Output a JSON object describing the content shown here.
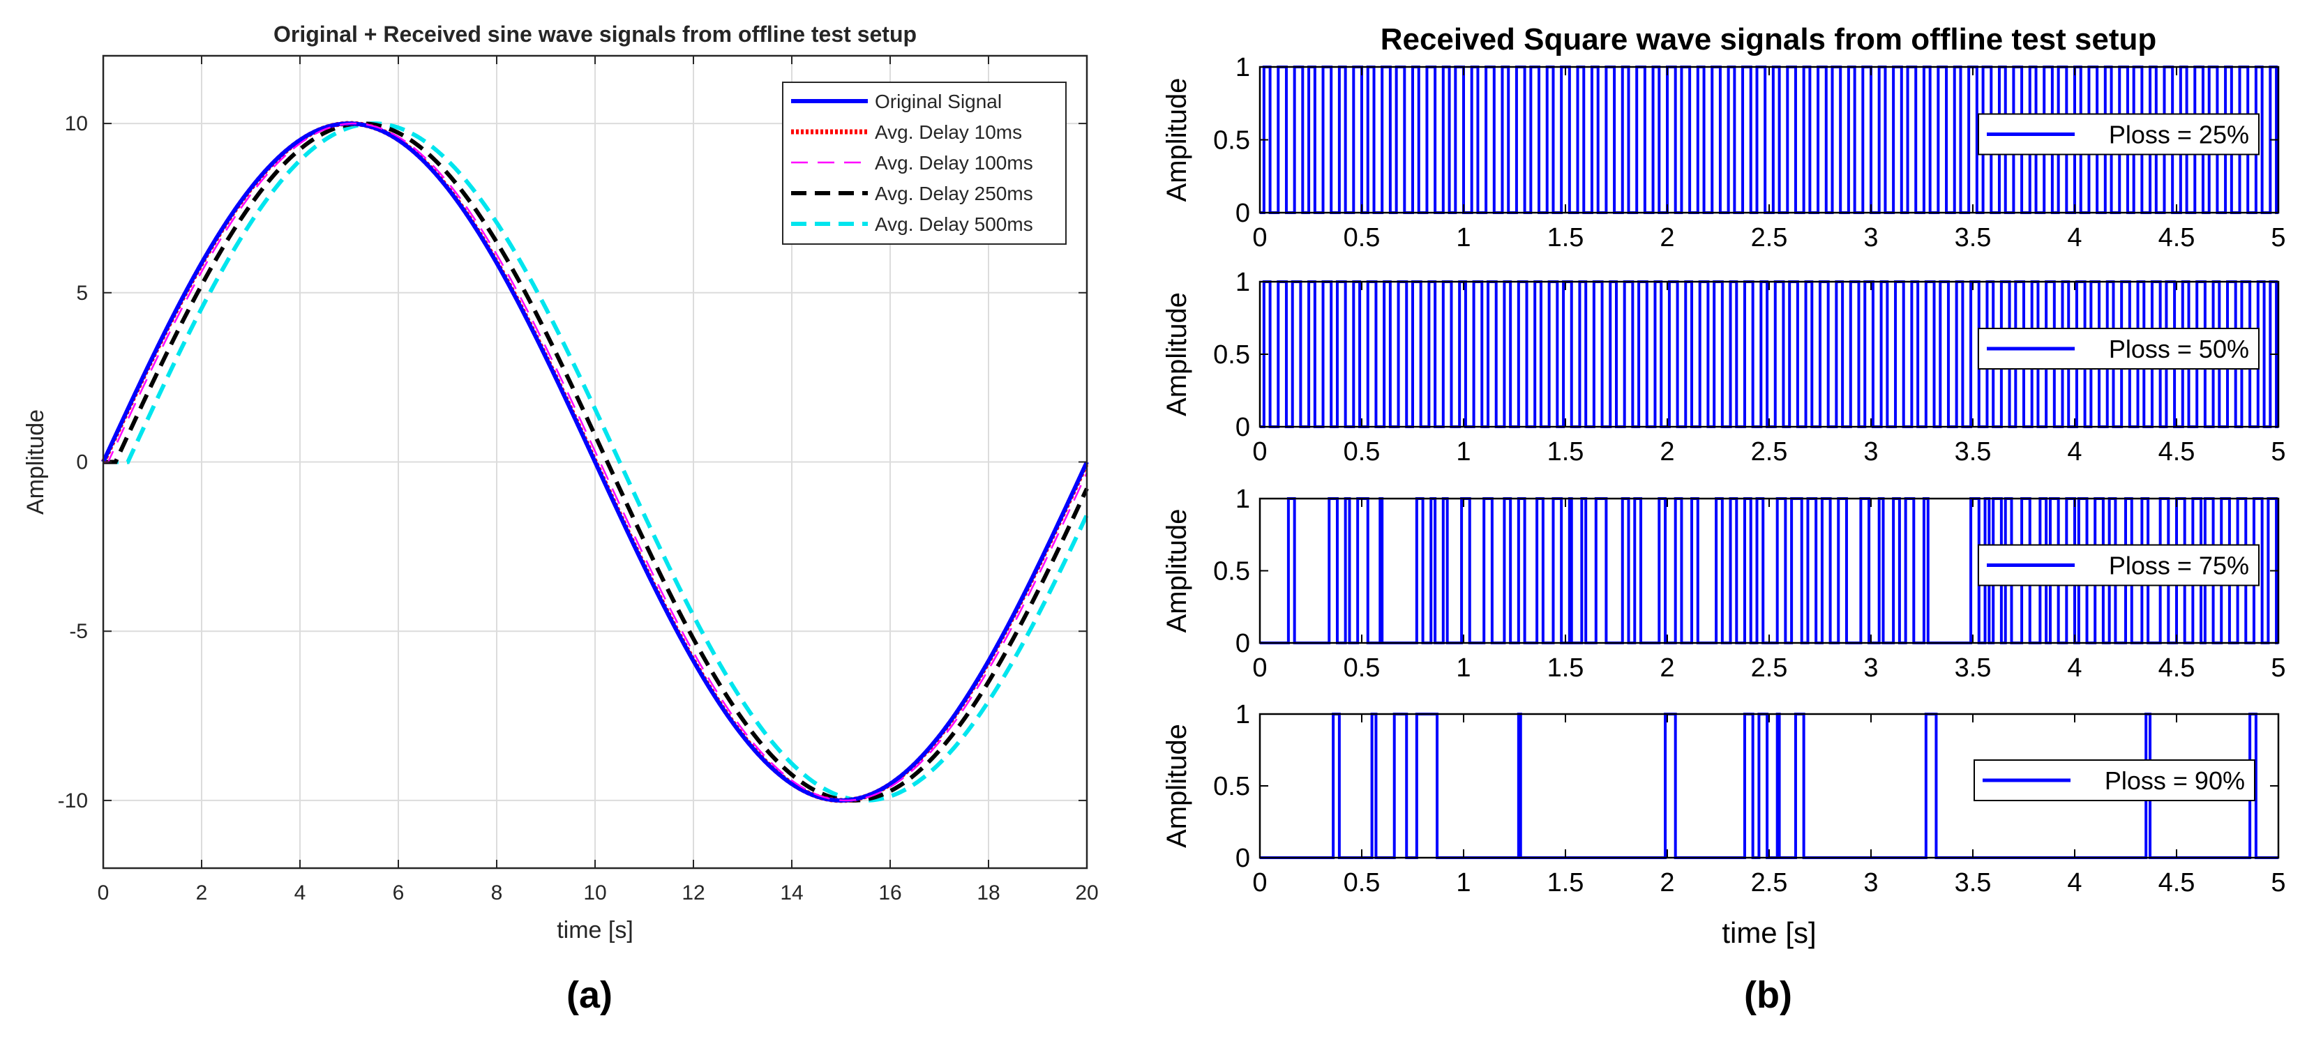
{
  "chart_data": [
    {
      "type": "line",
      "panel_label": "(a)",
      "title": "Original + Received sine wave signals from offline test setup",
      "xlabel": "time [s]",
      "ylabel": "Amplitude",
      "xlim": [
        0,
        20
      ],
      "ylim": [
        -12,
        12
      ],
      "xticks": [
        0,
        2,
        4,
        6,
        8,
        10,
        12,
        14,
        16,
        18,
        20
      ],
      "yticks": [
        -10,
        -5,
        0,
        5,
        10
      ],
      "grid": true,
      "legend_position": "top-right",
      "signal": "10*sin(2*pi*t/20), sampled 0 to 20 s",
      "series": [
        {
          "name": "Original Signal",
          "delay_s": 0,
          "amplitude": 10,
          "period_s": 20,
          "color": "#0000ff",
          "style": "solid"
        },
        {
          "name": "Avg. Delay 10ms",
          "delay_s": 0.01,
          "amplitude": 10,
          "period_s": 20,
          "color": "#ff0000",
          "style": "dotted"
        },
        {
          "name": "Avg. Delay 100ms",
          "delay_s": 0.1,
          "amplitude": 10,
          "period_s": 20,
          "color": "#ff00ff",
          "style": "dashed-thin"
        },
        {
          "name": "Avg. Delay 250ms",
          "delay_s": 0.25,
          "amplitude": 10,
          "period_s": 20,
          "color": "#000000",
          "style": "dashed"
        },
        {
          "name": "Avg. Delay 500ms",
          "delay_s": 0.5,
          "amplitude": 10,
          "period_s": 20,
          "color": "#00e5ee",
          "style": "dashed"
        }
      ]
    },
    {
      "type": "line",
      "panel_label": "(b)",
      "title": "Received Square wave signals from offline test setup",
      "xlabel": "time [s]",
      "ylabel": "Amplitude",
      "xlim": [
        0,
        5
      ],
      "ylim": [
        0,
        1
      ],
      "xticks": [
        0,
        0.5,
        1,
        1.5,
        2,
        2.5,
        3,
        3.5,
        4,
        4.5,
        5
      ],
      "xtick_labels": [
        "0",
        "0.5",
        "1",
        "1.5",
        "2",
        "2.5",
        "3",
        "3.5",
        "4",
        "4.5",
        "5"
      ],
      "yticks": [
        0,
        0.5,
        1
      ],
      "ytick_labels": [
        "0",
        "0.5",
        "1"
      ],
      "legend_position": "right",
      "color": "#0000ff",
      "subplots": [
        {
          "name": "Ploss = 25%",
          "pulses": [
            [
              0.02,
              0.05
            ],
            [
              0.09,
              0.13
            ],
            [
              0.17,
              0.21
            ],
            [
              0.24,
              0.27
            ],
            [
              0.31,
              0.35
            ],
            [
              0.39,
              0.42
            ],
            [
              0.46,
              0.5
            ],
            [
              0.53,
              0.56
            ],
            [
              0.6,
              0.64
            ],
            [
              0.67,
              0.71
            ],
            [
              0.75,
              0.78
            ],
            [
              0.82,
              0.86
            ],
            [
              0.9,
              0.93
            ],
            [
              0.96,
              1
            ],
            [
              1.04,
              1.07
            ],
            [
              1.11,
              1.15
            ],
            [
              1.19,
              1.22
            ],
            [
              1.26,
              1.3
            ],
            [
              1.33,
              1.37
            ],
            [
              1.41,
              1.44
            ],
            [
              1.48,
              1.52
            ],
            [
              1.56,
              1.59
            ],
            [
              1.63,
              1.66
            ],
            [
              1.7,
              1.74
            ],
            [
              1.78,
              1.81
            ],
            [
              1.85,
              1.89
            ],
            [
              1.93,
              1.96
            ],
            [
              2,
              2.04
            ],
            [
              2.07,
              2.11
            ],
            [
              2.15,
              2.18
            ],
            [
              2.22,
              2.26
            ],
            [
              2.3,
              2.33
            ],
            [
              2.37,
              2.41
            ],
            [
              2.44,
              2.48
            ],
            [
              2.52,
              2.55
            ],
            [
              2.59,
              2.63
            ],
            [
              2.67,
              2.7
            ],
            [
              2.74,
              2.78
            ],
            [
              2.81,
              2.85
            ],
            [
              2.89,
              2.92
            ],
            [
              2.96,
              3
            ],
            [
              3.04,
              3.07
            ],
            [
              3.11,
              3.15
            ],
            [
              3.18,
              3.22
            ],
            [
              3.26,
              3.29
            ],
            [
              3.33,
              3.37
            ],
            [
              3.41,
              3.44
            ],
            [
              3.48,
              3.52
            ],
            [
              3.55,
              3.59
            ],
            [
              3.63,
              3.66
            ],
            [
              3.7,
              3.74
            ],
            [
              3.78,
              3.81
            ],
            [
              3.85,
              3.89
            ],
            [
              3.92,
              3.96
            ],
            [
              4,
              4.03
            ],
            [
              4.07,
              4.11
            ],
            [
              4.15,
              4.18
            ],
            [
              4.22,
              4.26
            ],
            [
              4.29,
              4.33
            ],
            [
              4.37,
              4.4
            ],
            [
              4.44,
              4.48
            ],
            [
              4.52,
              4.55
            ],
            [
              4.59,
              4.63
            ],
            [
              4.66,
              4.7
            ],
            [
              4.74,
              4.77
            ],
            [
              4.81,
              4.85
            ],
            [
              4.89,
              4.92
            ],
            [
              4.96,
              4.99
            ]
          ]
        },
        {
          "name": "Ploss = 50%",
          "pulses": [
            [
              0.02,
              0.05
            ],
            [
              0.09,
              0.13
            ],
            [
              0.16,
              0.2
            ],
            [
              0.24,
              0.27
            ],
            [
              0.31,
              0.35
            ],
            [
              0.38,
              0.42
            ],
            [
              0.46,
              0.49
            ],
            [
              0.53,
              0.57
            ],
            [
              0.61,
              0.64
            ],
            [
              0.68,
              0.72
            ],
            [
              0.75,
              0.79
            ],
            [
              0.83,
              0.86
            ],
            [
              0.9,
              0.94
            ],
            [
              0.98,
              1.01
            ],
            [
              1.05,
              1.09
            ],
            [
              1.12,
              1.16
            ],
            [
              1.2,
              1.23
            ],
            [
              1.27,
              1.31
            ],
            [
              1.35,
              1.38
            ],
            [
              1.42,
              1.46
            ],
            [
              1.49,
              1.53
            ],
            [
              1.57,
              1.6
            ],
            [
              1.64,
              1.68
            ],
            [
              1.72,
              1.75
            ],
            [
              1.79,
              1.83
            ],
            [
              1.86,
              1.9
            ],
            [
              1.94,
              1.97
            ],
            [
              2.01,
              2.05
            ],
            [
              2.09,
              2.12
            ],
            [
              2.16,
              2.2
            ],
            [
              2.23,
              2.27
            ],
            [
              2.31,
              2.34
            ],
            [
              2.38,
              2.42
            ],
            [
              2.46,
              2.49
            ],
            [
              2.53,
              2.57
            ],
            [
              2.6,
              2.64
            ],
            [
              2.68,
              2.71
            ],
            [
              2.75,
              2.79
            ],
            [
              2.83,
              2.86
            ],
            [
              2.9,
              2.94
            ],
            [
              2.97,
              3.01
            ],
            [
              3.05,
              3.08
            ],
            [
              3.12,
              3.16
            ],
            [
              3.2,
              3.23
            ],
            [
              3.27,
              3.31
            ],
            [
              3.34,
              3.38
            ],
            [
              3.42,
              3.45
            ],
            [
              3.49,
              3.53
            ],
            [
              3.57,
              3.6
            ],
            [
              3.64,
              3.68
            ],
            [
              3.71,
              3.75
            ],
            [
              3.79,
              3.82
            ],
            [
              3.86,
              3.9
            ],
            [
              3.94,
              3.97
            ],
            [
              4.01,
              4.05
            ],
            [
              4.08,
              4.12
            ],
            [
              4.16,
              4.19
            ],
            [
              4.23,
              4.27
            ],
            [
              4.31,
              4.34
            ],
            [
              4.38,
              4.42
            ],
            [
              4.45,
              4.49
            ],
            [
              4.53,
              4.56
            ],
            [
              4.6,
              4.64
            ],
            [
              4.68,
              4.71
            ],
            [
              4.75,
              4.79
            ],
            [
              4.82,
              4.86
            ],
            [
              4.9,
              4.93
            ],
            [
              4.96,
              4.99
            ]
          ]
        },
        {
          "name": "Ploss = 75%",
          "pulses": [
            [
              0.14,
              0.17
            ],
            [
              0.34,
              0.38
            ],
            [
              0.42,
              0.44
            ],
            [
              0.48,
              0.53
            ],
            [
              0.59,
              0.6
            ],
            [
              0.77,
              0.8
            ],
            [
              0.84,
              0.86
            ],
            [
              0.9,
              0.92
            ],
            [
              0.99,
              1.03
            ],
            [
              1.1,
              1.14
            ],
            [
              1.2,
              1.23
            ],
            [
              1.27,
              1.3
            ],
            [
              1.36,
              1.39
            ],
            [
              1.44,
              1.48
            ],
            [
              1.52,
              1.53
            ],
            [
              1.58,
              1.6
            ],
            [
              1.65,
              1.7
            ],
            [
              1.78,
              1.81
            ],
            [
              1.84,
              1.87
            ],
            [
              1.96,
              1.99
            ],
            [
              2.04,
              2.07
            ],
            [
              2.12,
              2.15
            ],
            [
              2.24,
              2.27
            ],
            [
              2.31,
              2.34
            ],
            [
              2.38,
              2.41
            ],
            [
              2.44,
              2.47
            ],
            [
              2.54,
              2.58
            ],
            [
              2.61,
              2.66
            ],
            [
              2.69,
              2.73
            ],
            [
              2.76,
              2.8
            ],
            [
              2.84,
              2.88
            ],
            [
              2.95,
              2.99
            ],
            [
              3.04,
              3.06
            ],
            [
              3.11,
              3.14
            ],
            [
              3.17,
              3.21
            ],
            [
              3.26,
              3.28
            ],
            [
              3.49,
              3.53
            ],
            [
              3.56,
              3.58
            ],
            [
              3.6,
              3.64
            ],
            [
              3.66,
              3.69
            ],
            [
              3.74,
              3.78
            ],
            [
              3.83,
              3.86
            ],
            [
              3.88,
              3.92
            ],
            [
              3.96,
              4
            ],
            [
              4.02,
              4.06
            ],
            [
              4.1,
              4.14
            ],
            [
              4.17,
              4.2
            ],
            [
              4.25,
              4.28
            ],
            [
              4.33,
              4.36
            ],
            [
              4.42,
              4.46
            ],
            [
              4.5,
              4.54
            ],
            [
              4.58,
              4.62
            ],
            [
              4.64,
              4.68
            ],
            [
              4.72,
              4.76
            ],
            [
              4.8,
              4.84
            ],
            [
              4.88,
              4.92
            ],
            [
              4.95,
              4.99
            ]
          ]
        },
        {
          "name": "Ploss = 90%",
          "pulses": [
            [
              0.36,
              0.39
            ],
            [
              0.55,
              0.57
            ],
            [
              0.66,
              0.72
            ],
            [
              0.77,
              0.87
            ],
            [
              1.27,
              1.28
            ],
            [
              1.99,
              2.04
            ],
            [
              2.38,
              2.42
            ],
            [
              2.45,
              2.49
            ],
            [
              2.54,
              2.55
            ],
            [
              2.63,
              2.67
            ],
            [
              3.27,
              3.32
            ],
            [
              4.35,
              4.37
            ],
            [
              4.86,
              4.89
            ]
          ]
        }
      ]
    }
  ]
}
